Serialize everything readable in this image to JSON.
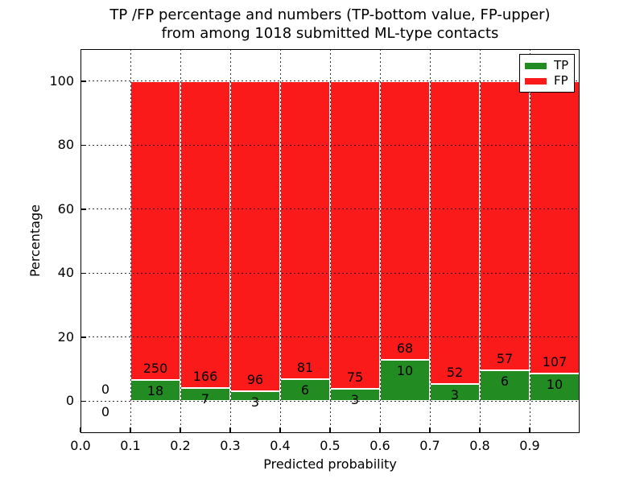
{
  "chart_data": {
    "type": "bar",
    "stacked": true,
    "title_line1": "TP /FP percentage and numbers (TP-bottom value, FP-upper)",
    "title_line2": "from among 1018 submitted ML-type contacts",
    "xlabel": "Predicted probability",
    "ylabel": "Percentage",
    "xlim": [
      0.0,
      1.0
    ],
    "ylim": [
      -10,
      110
    ],
    "xtick_labels": [
      "0.0",
      "0.1",
      "0.2",
      "0.3",
      "0.4",
      "0.5",
      "0.6",
      "0.7",
      "0.8",
      "0.9"
    ],
    "ytick_values": [
      0,
      20,
      40,
      60,
      80,
      100
    ],
    "grid": {
      "style": "dotted",
      "color": "#000000",
      "on": true,
      "drawn_over_bars": true
    },
    "colors": {
      "tp": "#228B22",
      "fp": "#FA1A1A",
      "background": "#FFFFFF",
      "text": "#000000"
    },
    "legend": {
      "position": "upper-right",
      "entries": [
        {
          "label": "TP",
          "color": "#228B22"
        },
        {
          "label": "FP",
          "color": "#FA1A1A"
        }
      ]
    },
    "bin_width": 0.1,
    "total_contacts": 1018,
    "bins": [
      {
        "x_start": 0.0,
        "tp": 0,
        "fp": 0
      },
      {
        "x_start": 0.1,
        "tp": 18,
        "fp": 250
      },
      {
        "x_start": 0.2,
        "tp": 7,
        "fp": 166
      },
      {
        "x_start": 0.3,
        "tp": 3,
        "fp": 96
      },
      {
        "x_start": 0.4,
        "tp": 6,
        "fp": 81
      },
      {
        "x_start": 0.5,
        "tp": 3,
        "fp": 75
      },
      {
        "x_start": 0.6,
        "tp": 10,
        "fp": 68
      },
      {
        "x_start": 0.7,
        "tp": 3,
        "fp": 52
      },
      {
        "x_start": 0.8,
        "tp": 6,
        "fp": 57
      },
      {
        "x_start": 0.9,
        "tp": 10,
        "fp": 107
      }
    ]
  }
}
